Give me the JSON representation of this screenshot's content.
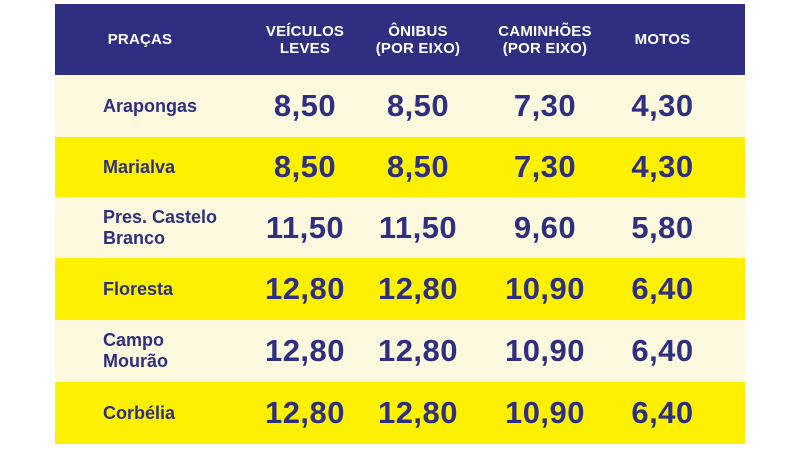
{
  "table": {
    "headers": [
      [
        "PRAÇAS"
      ],
      [
        "VEÍCULOS",
        "LEVES"
      ],
      [
        "ÔNIBUS",
        "(POR EIXO)"
      ],
      [
        "CAMINHÕES",
        "(POR EIXO)"
      ],
      [
        "MOTOS"
      ]
    ],
    "rows": [
      {
        "label": [
          "Arapongas"
        ],
        "values": [
          "8,50",
          "8,50",
          "7,30",
          "4,30"
        ]
      },
      {
        "label": [
          "Marialva"
        ],
        "values": [
          "8,50",
          "8,50",
          "7,30",
          "4,30"
        ]
      },
      {
        "label": [
          "Pres. Castelo",
          "Branco"
        ],
        "values": [
          "11,50",
          "11,50",
          "9,60",
          "5,80"
        ]
      },
      {
        "label": [
          "Floresta"
        ],
        "values": [
          "12,80",
          "12,80",
          "10,90",
          "6,40"
        ]
      },
      {
        "label": [
          "Campo",
          "Mourão"
        ],
        "values": [
          "12,80",
          "12,80",
          "10,90",
          "6,40"
        ]
      },
      {
        "label": [
          "Corbélia"
        ],
        "values": [
          "12,80",
          "12,80",
          "10,90",
          "6,40"
        ]
      }
    ]
  }
}
